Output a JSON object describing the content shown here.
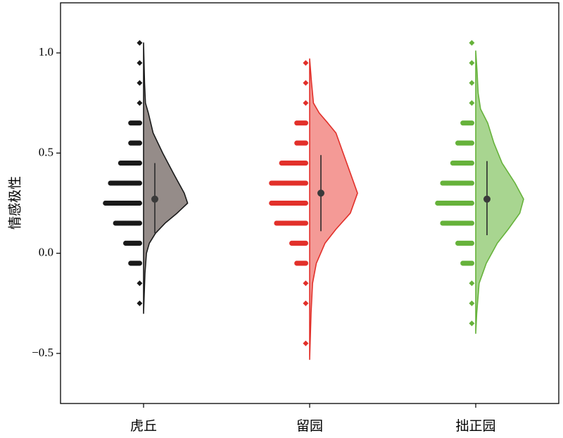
{
  "chart_data": {
    "type": "raincloud",
    "ylabel": "情感极性",
    "ylim": [
      -0.75,
      1.25
    ],
    "yticks": [
      -0.5,
      0.0,
      0.5,
      1.0
    ],
    "ytick_labels": [
      "−0.5",
      "0.0",
      "0.5",
      "1.0"
    ],
    "categories": [
      "虎丘",
      "留园",
      "拙正园"
    ],
    "series": [
      {
        "category": "虎丘",
        "color": "#1a1a1a",
        "fill": "#958c89",
        "dot_rows": [
          {
            "y": 1.05,
            "count": 1
          },
          {
            "y": 0.95,
            "count": 1
          },
          {
            "y": 0.85,
            "count": 1
          },
          {
            "y": 0.75,
            "count": 1
          },
          {
            "y": 0.65,
            "count": 2
          },
          {
            "y": 0.55,
            "count": 2
          },
          {
            "y": 0.45,
            "count": 4
          },
          {
            "y": 0.35,
            "count": 6
          },
          {
            "y": 0.25,
            "count": 7
          },
          {
            "y": 0.15,
            "count": 5
          },
          {
            "y": 0.05,
            "count": 3
          },
          {
            "y": -0.05,
            "count": 2
          },
          {
            "y": -0.15,
            "count": 1
          },
          {
            "y": -0.25,
            "count": 1
          }
        ],
        "density": [
          [
            1.05,
            0
          ],
          [
            0.85,
            0.02
          ],
          [
            0.75,
            0.04
          ],
          [
            0.7,
            0.1
          ],
          [
            0.6,
            0.2
          ],
          [
            0.5,
            0.4
          ],
          [
            0.4,
            0.62
          ],
          [
            0.3,
            0.85
          ],
          [
            0.25,
            0.92
          ],
          [
            0.2,
            0.7
          ],
          [
            0.15,
            0.45
          ],
          [
            0.1,
            0.25
          ],
          [
            0.05,
            0.12
          ],
          [
            0.0,
            0.06
          ],
          [
            -0.1,
            0.03
          ],
          [
            -0.3,
            0
          ]
        ],
        "density_scale": 1.0,
        "median": 0.27,
        "whisker": [
          0.1,
          0.45
        ]
      },
      {
        "category": "留园",
        "color": "#e2302a",
        "fill": "#f49a96",
        "dot_rows": [
          {
            "y": 0.95,
            "count": 1
          },
          {
            "y": 0.85,
            "count": 1
          },
          {
            "y": 0.75,
            "count": 1
          },
          {
            "y": 0.65,
            "count": 2
          },
          {
            "y": 0.55,
            "count": 2
          },
          {
            "y": 0.45,
            "count": 5
          },
          {
            "y": 0.35,
            "count": 7
          },
          {
            "y": 0.25,
            "count": 7
          },
          {
            "y": 0.15,
            "count": 6
          },
          {
            "y": 0.05,
            "count": 3
          },
          {
            "y": -0.05,
            "count": 2
          },
          {
            "y": -0.15,
            "count": 1
          },
          {
            "y": -0.25,
            "count": 1
          },
          {
            "y": -0.45,
            "count": 1
          }
        ],
        "density": [
          [
            0.97,
            0
          ],
          [
            0.85,
            0.04
          ],
          [
            0.75,
            0.08
          ],
          [
            0.7,
            0.2
          ],
          [
            0.65,
            0.38
          ],
          [
            0.6,
            0.55
          ],
          [
            0.5,
            0.7
          ],
          [
            0.4,
            0.85
          ],
          [
            0.3,
            1.0
          ],
          [
            0.2,
            0.85
          ],
          [
            0.12,
            0.55
          ],
          [
            0.05,
            0.32
          ],
          [
            -0.05,
            0.14
          ],
          [
            -0.15,
            0.06
          ],
          [
            -0.3,
            0.03
          ],
          [
            -0.53,
            0
          ]
        ],
        "density_scale": 1.0,
        "median": 0.3,
        "whisker": [
          0.11,
          0.49
        ]
      },
      {
        "category": "拙正园",
        "color": "#66b23b",
        "fill": "#a8d590",
        "dot_rows": [
          {
            "y": 1.05,
            "count": 1
          },
          {
            "y": 0.95,
            "count": 1
          },
          {
            "y": 0.85,
            "count": 1
          },
          {
            "y": 0.75,
            "count": 1
          },
          {
            "y": 0.65,
            "count": 2
          },
          {
            "y": 0.55,
            "count": 3
          },
          {
            "y": 0.45,
            "count": 4
          },
          {
            "y": 0.35,
            "count": 6
          },
          {
            "y": 0.25,
            "count": 7
          },
          {
            "y": 0.15,
            "count": 6
          },
          {
            "y": 0.05,
            "count": 3
          },
          {
            "y": -0.05,
            "count": 2
          },
          {
            "y": -0.15,
            "count": 1
          },
          {
            "y": -0.25,
            "count": 1
          },
          {
            "y": -0.35,
            "count": 1
          }
        ],
        "density": [
          [
            1.01,
            0
          ],
          [
            0.9,
            0.03
          ],
          [
            0.8,
            0.05
          ],
          [
            0.72,
            0.1
          ],
          [
            0.65,
            0.25
          ],
          [
            0.55,
            0.38
          ],
          [
            0.45,
            0.55
          ],
          [
            0.35,
            0.82
          ],
          [
            0.27,
            1.0
          ],
          [
            0.2,
            0.92
          ],
          [
            0.12,
            0.68
          ],
          [
            0.05,
            0.45
          ],
          [
            -0.05,
            0.22
          ],
          [
            -0.15,
            0.07
          ],
          [
            -0.3,
            0.02
          ],
          [
            -0.4,
            0
          ]
        ],
        "density_scale": 1.0,
        "median": 0.27,
        "whisker": [
          0.09,
          0.46
        ]
      }
    ],
    "grid": false,
    "legend": "none"
  }
}
